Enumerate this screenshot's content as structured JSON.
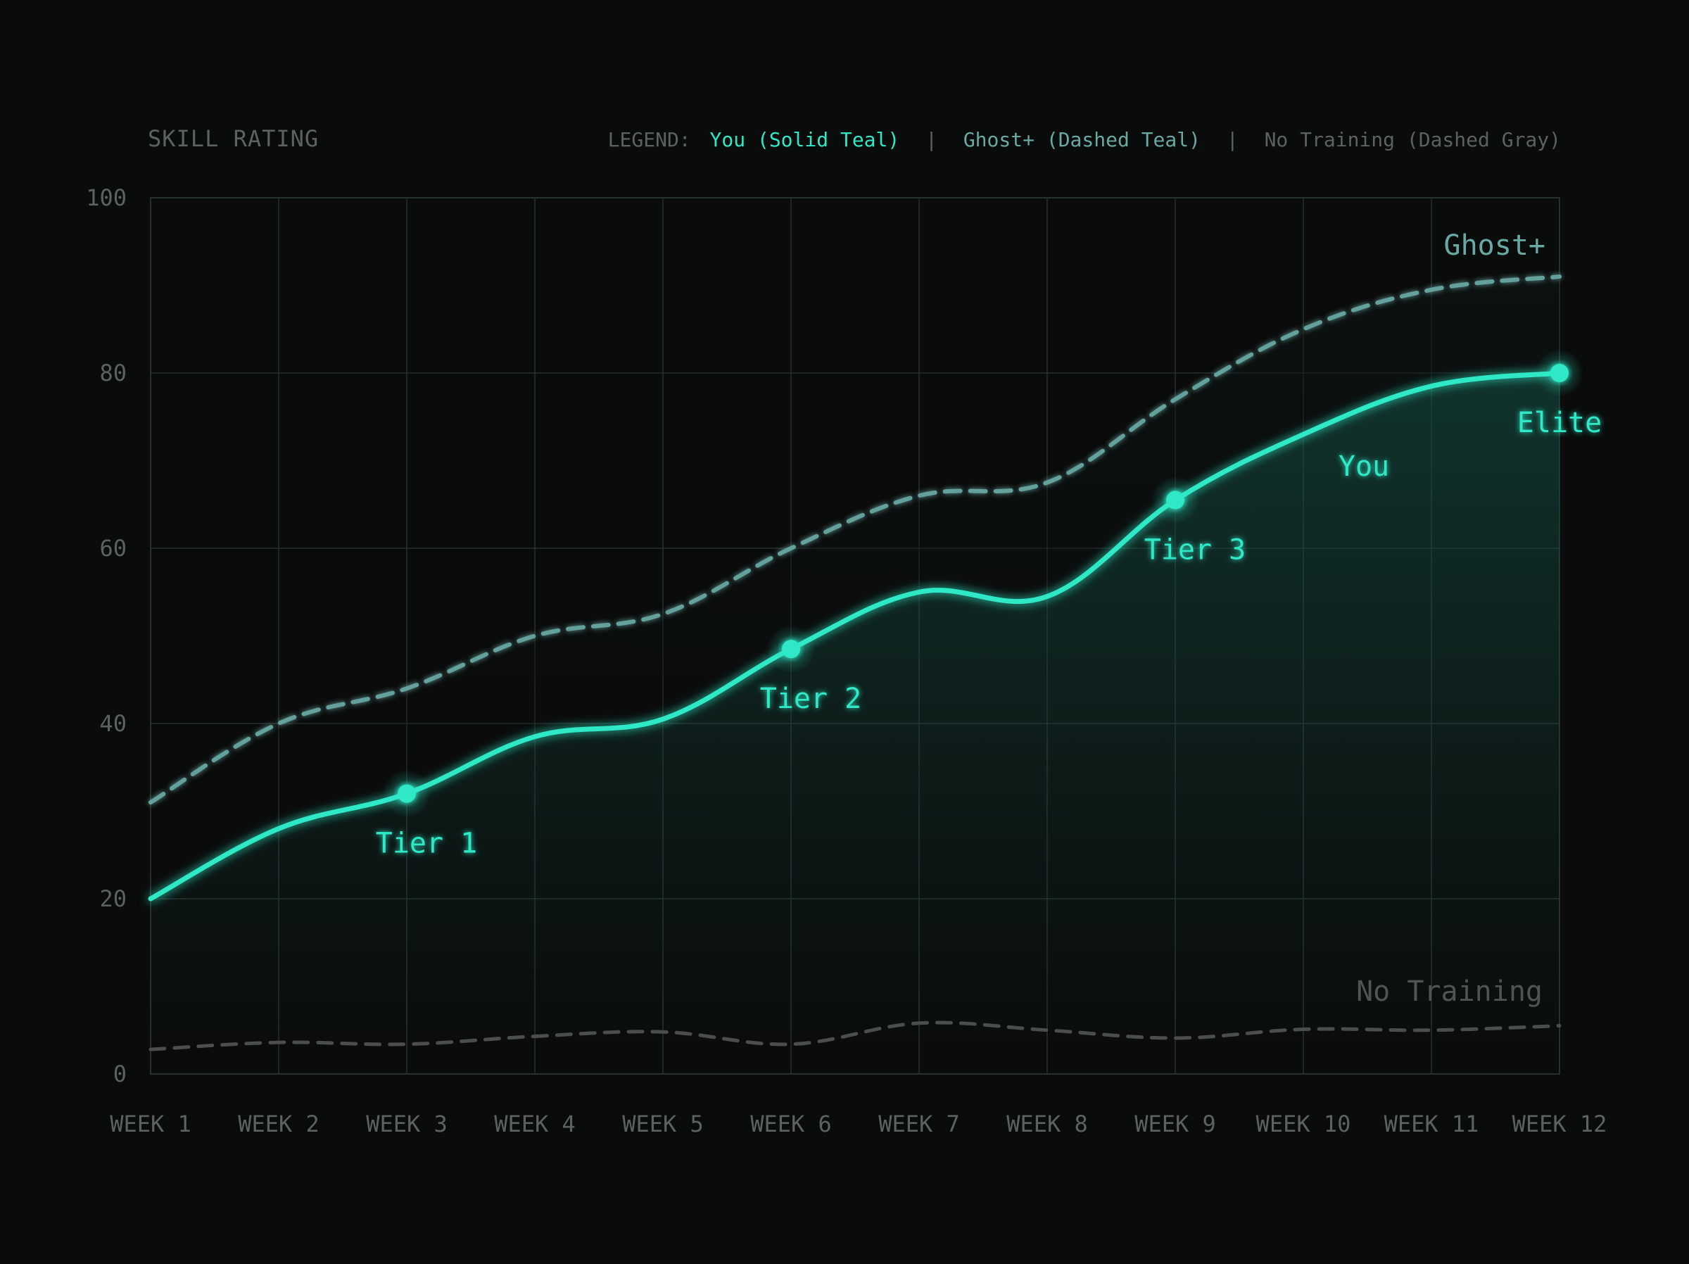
{
  "colors": {
    "background": "#0a0b0b",
    "grid": "#26302f",
    "axis_text": "#5b6362",
    "you": "#2ee8c6",
    "ghost": "#69a9a4",
    "no_training": "#4a4f4e",
    "no_training_label": "#4e5554"
  },
  "legend": {
    "prefix": "LEGEND:",
    "you": "You (Solid Teal)",
    "sep1": "|",
    "ghost": "Ghost+ (Dashed Teal)",
    "sep2": "|",
    "no_training": "No Training (Dashed Gray)",
    "placement": "top-right"
  },
  "chart_data": {
    "type": "line",
    "title": "",
    "ylabel": "SKILL RATING",
    "xlabel": "",
    "categories": [
      "WEEK 1",
      "WEEK 2",
      "WEEK 3",
      "WEEK 4",
      "WEEK 5",
      "WEEK 6",
      "WEEK 7",
      "WEEK 8",
      "WEEK 9",
      "WEEK 10",
      "WEEK 11",
      "WEEK 12"
    ],
    "ylim": [
      0,
      100
    ],
    "yticks": [
      0,
      20,
      40,
      60,
      80,
      100
    ],
    "grid": true,
    "series": [
      {
        "name": "You",
        "style": "solid",
        "values": [
          20,
          28,
          32,
          38.5,
          40.5,
          48.5,
          55,
          54.5,
          65.5,
          73,
          78.5,
          80
        ],
        "area_fill": true
      },
      {
        "name": "Ghost+",
        "style": "dashed",
        "values": [
          31,
          40,
          44,
          50,
          52.5,
          60,
          66,
          67.5,
          77,
          85,
          89.5,
          91
        ]
      },
      {
        "name": "No Training",
        "style": "dashed",
        "values": [
          2.8,
          3.6,
          3.4,
          4.3,
          4.8,
          3.4,
          5.8,
          5,
          4.1,
          5.1,
          5,
          5.5
        ]
      }
    ],
    "milestones": [
      {
        "label": "Tier 1",
        "x": "WEEK 3",
        "y": 32
      },
      {
        "label": "Tier 2",
        "x": "WEEK 6",
        "y": 48.5
      },
      {
        "label": "Tier 3",
        "x": "WEEK 9",
        "y": 65.5
      },
      {
        "label": "Elite",
        "x": "WEEK 12",
        "y": 80
      }
    ],
    "annotations": [
      "Ghost+",
      "You",
      "No Training"
    ]
  }
}
